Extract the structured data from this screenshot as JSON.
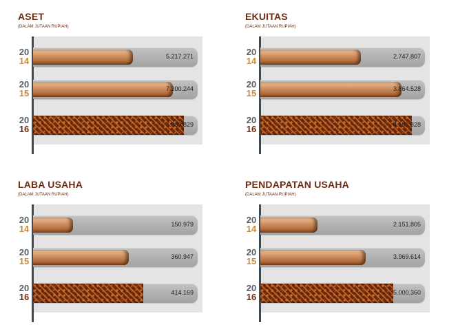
{
  "chart_data": [
    {
      "type": "bar",
      "orientation": "horizontal",
      "title": "ASET",
      "subtitle": "(DALAM JUTAAN RUPIAH)",
      "categories": [
        [
          "20",
          "14"
        ],
        [
          "20",
          "15"
        ],
        [
          "20",
          "16"
        ]
      ],
      "values": [
        5217271,
        7300244,
        7889829
      ],
      "labels": [
        "5.217.271",
        "7.300.244",
        "7.889.829"
      ],
      "xlim": [
        0,
        8600000
      ]
    },
    {
      "type": "bar",
      "orientation": "horizontal",
      "title": "EKUITAS",
      "subtitle": "(DALAM JUTAAN RUPIAH)",
      "categories": [
        [
          "20",
          "14"
        ],
        [
          "20",
          "15"
        ],
        [
          "20",
          "16"
        ]
      ],
      "values": [
        2747807,
        3864528,
        4151328
      ],
      "labels": [
        "2.747.807",
        "3.864.528",
        "4.151.328"
      ],
      "xlim": [
        0,
        4500000
      ]
    },
    {
      "type": "bar",
      "orientation": "horizontal",
      "title": "LABA USAHA",
      "subtitle": "(DALAM JUTAAN RUPIAH)",
      "categories": [
        [
          "20",
          "14"
        ],
        [
          "20",
          "15"
        ],
        [
          "20",
          "16"
        ]
      ],
      "values": [
        150979,
        360947,
        414169
      ],
      "labels": [
        "150.979",
        "360.947",
        "414.169"
      ],
      "xlim": [
        0,
        620000
      ]
    },
    {
      "type": "bar",
      "orientation": "horizontal",
      "title": "PENDAPATAN USAHA",
      "subtitle": "(DALAM JUTAAN RUPIAH)",
      "categories": [
        [
          "20",
          "14"
        ],
        [
          "20",
          "15"
        ],
        [
          "20",
          "16"
        ]
      ],
      "values": [
        2151805,
        3969614,
        5000360
      ],
      "labels": [
        "2.151.805",
        "3.969.614",
        "5.000.360"
      ],
      "xlim": [
        0,
        6200000
      ]
    }
  ]
}
